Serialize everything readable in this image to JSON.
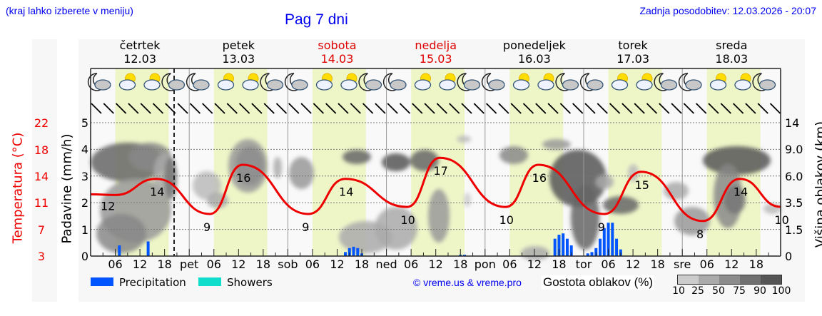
{
  "header": {
    "left_note": "(kraj lahko izberete v meniju)",
    "title": "Pag 7 dni",
    "last_update": "Zadnja posodobitev: 12.03.2026 - 20:07"
  },
  "days": [
    {
      "name": "četrtek",
      "date": "12.03",
      "weekend": false
    },
    {
      "name": "petek",
      "date": "13.03",
      "weekend": false
    },
    {
      "name": "sobota",
      "date": "14.03",
      "weekend": true
    },
    {
      "name": "nedelja",
      "date": "15.03",
      "weekend": true
    },
    {
      "name": "ponedeljek",
      "date": "16.03",
      "weekend": false
    },
    {
      "name": "torek",
      "date": "17.03",
      "weekend": false
    },
    {
      "name": "sreda",
      "date": "18.03",
      "weekend": false
    }
  ],
  "axes": {
    "temp_label": "Temperatura (°C)",
    "temp_ticks": [
      "22",
      "18",
      "14",
      "11",
      "7",
      "3"
    ],
    "precip_label": "Padavine (mm/h)",
    "precip_ticks": [
      "5",
      "4",
      "3",
      "2",
      "1",
      "0"
    ],
    "cloud_height_label": "Višina oblakov (km)",
    "cloud_height_ticks": [
      "14",
      "9.0",
      "6.0",
      "3.5",
      "1.5",
      "0"
    ],
    "x_ticks": [
      "06",
      "12",
      "18",
      "pet",
      "06",
      "12",
      "18",
      "sob",
      "06",
      "12",
      "18",
      "ned",
      "06",
      "12",
      "18",
      "pon",
      "06",
      "12",
      "18",
      "tor",
      "06",
      "12",
      "18",
      "sre",
      "06",
      "12",
      "18"
    ]
  },
  "legend": {
    "precipitation": "Precipitation",
    "showers": "Showers",
    "precip_color": "#0055ff",
    "showers_color": "#11ddcc"
  },
  "copyright": "© vreme.us & vreme.pro",
  "cloud_density": {
    "title": "Gostota oblakov (%)",
    "labels": [
      "10",
      "25",
      "50",
      "75",
      "90",
      "100"
    ],
    "colors": [
      "#cccccc",
      "#aaaaaa",
      "#8c8c8c",
      "#707070",
      "#555555"
    ]
  },
  "chart_data": {
    "type": "line",
    "title": "Pag 7 dni",
    "xlabel": "",
    "ylabel": "Padavine (mm/h)",
    "y2label": "Višina oblakov (km)",
    "ylim": [
      0,
      5
    ],
    "temp_range": [
      3,
      22
    ],
    "grid": true,
    "series": [
      {
        "name": "Temperatura (°C)",
        "color": "#ee0000",
        "labels": [
          {
            "x_hours": 4,
            "value": 12
          },
          {
            "x_hours": 16,
            "value": 14
          },
          {
            "x_hours": 29,
            "value": 9
          },
          {
            "x_hours": 37,
            "value": 16
          },
          {
            "x_hours": 53,
            "value": 9
          },
          {
            "x_hours": 62,
            "value": 14
          },
          {
            "x_hours": 77,
            "value": 10
          },
          {
            "x_hours": 85,
            "value": 17
          },
          {
            "x_hours": 101,
            "value": 10
          },
          {
            "x_hours": 109,
            "value": 16
          },
          {
            "x_hours": 125,
            "value": 9
          },
          {
            "x_hours": 134,
            "value": 15
          },
          {
            "x_hours": 149,
            "value": 8
          },
          {
            "x_hours": 158,
            "value": 14
          },
          {
            "x_hours": 168,
            "value": 10
          }
        ]
      },
      {
        "name": "Precipitation (mm/h)",
        "color": "#0055ff",
        "bars": [
          {
            "x_hours": 7,
            "value": 0.4
          },
          {
            "x_hours": 14,
            "value": 0.55
          },
          {
            "x_hours": 62,
            "value": 0.15
          },
          {
            "x_hours": 63,
            "value": 0.3
          },
          {
            "x_hours": 64,
            "value": 0.35
          },
          {
            "x_hours": 65,
            "value": 0.3
          },
          {
            "x_hours": 66,
            "value": 0.1
          },
          {
            "x_hours": 90,
            "value": 0.05
          },
          {
            "x_hours": 91,
            "value": 0.05
          },
          {
            "x_hours": 113,
            "value": 0.65
          },
          {
            "x_hours": 114,
            "value": 0.8
          },
          {
            "x_hours": 115,
            "value": 0.85
          },
          {
            "x_hours": 116,
            "value": 0.65
          },
          {
            "x_hours": 117,
            "value": 0.4
          },
          {
            "x_hours": 121,
            "value": 0.1
          },
          {
            "x_hours": 122,
            "value": 0.15
          },
          {
            "x_hours": 123,
            "value": 0.3
          },
          {
            "x_hours": 124,
            "value": 0.65
          },
          {
            "x_hours": 125,
            "value": 1.05
          },
          {
            "x_hours": 126,
            "value": 1.25
          },
          {
            "x_hours": 127,
            "value": 1.25
          },
          {
            "x_hours": 128,
            "value": 0.65
          },
          {
            "x_hours": 129,
            "value": 0.25
          }
        ]
      }
    ],
    "annotations": [
      "current time dashed line at 12.03 ~20:00"
    ]
  }
}
